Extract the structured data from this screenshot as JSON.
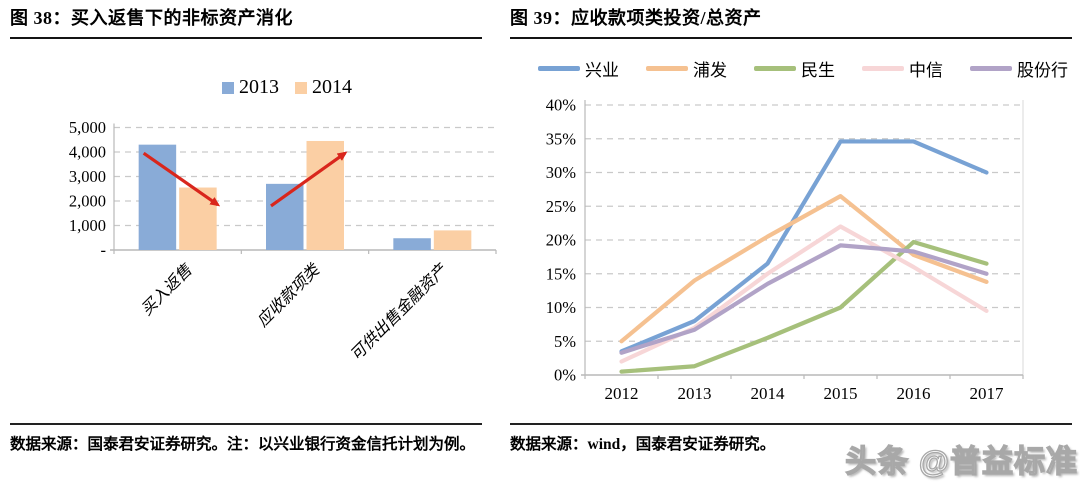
{
  "left_panel": {
    "title": "图 38：买入返售下的非标资产消化",
    "footnote": "数据来源：国泰君安证券研究。注：以兴业银行资金信托计划为例。"
  },
  "right_panel": {
    "title": "图 39：应收款项类投资/总资产",
    "footnote": "数据来源：wind，国泰君安证券研究。"
  },
  "watermark": "头条 @普益标准",
  "colors": {
    "bar_2013": "#89abd7",
    "bar_2014": "#fbcfa4",
    "arrow_red": "#d9261c",
    "grid": "#c9c9c9",
    "axis": "#b9b9b9"
  },
  "chart_data": [
    {
      "type": "bar",
      "title": "买入返售下的非标资产消化",
      "categories": [
        "买入返售",
        "应收款项类",
        "可供出售金融资产"
      ],
      "series": [
        {
          "name": "2013",
          "color": "#89abd7",
          "values": [
            4300,
            2700,
            480
          ]
        },
        {
          "name": "2014",
          "color": "#fbcfa4",
          "values": [
            2550,
            4450,
            800
          ]
        }
      ],
      "ylim": [
        0,
        5000
      ],
      "yticks": [
        "-",
        "1,000",
        "2,000",
        "3,000",
        "4,000",
        "5,000"
      ],
      "grid": true,
      "legend_position": "top",
      "annotations": [
        {
          "type": "arrow",
          "color": "#d9261c",
          "group": 0,
          "from_value": 3950,
          "to_value": 1850,
          "meaning": "decrease"
        },
        {
          "type": "arrow",
          "color": "#d9261c",
          "group": 1,
          "from_value": 1800,
          "to_value": 3950,
          "meaning": "increase"
        }
      ]
    },
    {
      "type": "line",
      "title": "应收款项类投资/总资产",
      "x": [
        "2012",
        "2013",
        "2014",
        "2015",
        "2016",
        "2017"
      ],
      "unit": "%",
      "series": [
        {
          "name": "兴业",
          "color": "#78a2d4",
          "values": [
            3.5,
            8.0,
            16.5,
            34.6,
            34.6,
            30.0
          ]
        },
        {
          "name": "浦发",
          "color": "#f5c191",
          "values": [
            5.0,
            14.0,
            20.5,
            26.5,
            17.8,
            13.8
          ]
        },
        {
          "name": "民生",
          "color": "#a6c07b",
          "values": [
            0.5,
            1.3,
            5.5,
            10.0,
            19.7,
            16.5
          ]
        },
        {
          "name": "中信",
          "color": "#f7d6d7",
          "values": [
            2.0,
            7.0,
            15.0,
            22.0,
            16.0,
            9.5
          ]
        },
        {
          "name": "股份行",
          "color": "#b1a3c7",
          "values": [
            3.3,
            6.7,
            13.5,
            19.2,
            18.3,
            15.0
          ]
        }
      ],
      "ylim": [
        0,
        40
      ],
      "yticks": [
        "0%",
        "5%",
        "10%",
        "15%",
        "20%",
        "25%",
        "30%",
        "35%",
        "40%"
      ],
      "grid": true,
      "legend_position": "top"
    }
  ]
}
